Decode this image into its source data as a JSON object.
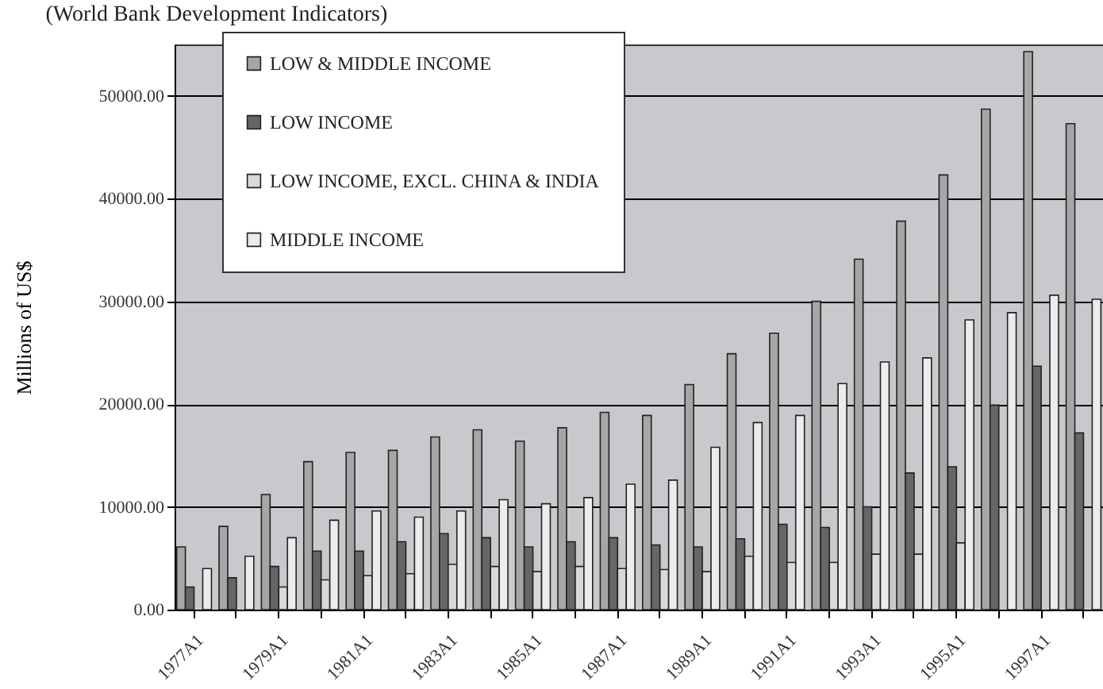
{
  "chart_data": {
    "type": "bar",
    "title": "(World Bank Development Indicators)",
    "ylabel": "Millions of US$",
    "categories": [
      "1977A1",
      null,
      "1979A1",
      null,
      "1981A1",
      null,
      "1983A1",
      null,
      "1985A1",
      null,
      "1987A1",
      null,
      "1989A1",
      null,
      "1991A1",
      null,
      "1993A1",
      null,
      "1995A1",
      null,
      "1997A1",
      null
    ],
    "series": [
      {
        "name": "LOW & MIDDLE INCOME",
        "color": "#a6a6a6",
        "values": [
          6100,
          8100,
          11200,
          14400,
          15300,
          15500,
          16800,
          17500,
          16400,
          17700,
          19200,
          18900,
          21900,
          24900,
          26900,
          30000,
          34100,
          37800,
          42300,
          48700,
          54300,
          47300
        ]
      },
      {
        "name": "LOW INCOME",
        "color": "#666666",
        "values": [
          2200,
          3100,
          4200,
          5700,
          5700,
          6600,
          7400,
          7000,
          6100,
          6600,
          7000,
          6300,
          6100,
          6900,
          8300,
          8000,
          10000,
          13300,
          13900,
          19900,
          23700,
          17200
        ]
      },
      {
        "name": "LOW INCOME, EXCL. CHINA & INDIA",
        "color": "#d9d9d9",
        "values": [
          null,
          null,
          2200,
          2900,
          3300,
          3500,
          4400,
          4200,
          3700,
          4200,
          4000,
          3900,
          3700,
          5200,
          4600,
          4600,
          5400,
          5400,
          6500,
          null,
          null,
          null
        ]
      },
      {
        "name": "MIDDLE INCOME",
        "color": "#ececec",
        "values": [
          4000,
          5200,
          7000,
          8700,
          9600,
          9000,
          9600,
          10700,
          10300,
          10900,
          12200,
          12600,
          15800,
          18200,
          18900,
          22000,
          24100,
          24500,
          28200,
          28900,
          30600,
          30200
        ]
      }
    ],
    "ylim": [
      0,
      55000
    ],
    "yticks": [
      {
        "value": 0,
        "label": "0.00"
      },
      {
        "value": 10000,
        "label": "10000.00"
      },
      {
        "value": 20000,
        "label": "20000.00"
      },
      {
        "value": 30000,
        "label": "30000.00"
      },
      {
        "value": 40000,
        "label": "40000.00"
      },
      {
        "value": 50000,
        "label": "50000.00"
      }
    ],
    "grid": "y",
    "legend": "top left"
  }
}
